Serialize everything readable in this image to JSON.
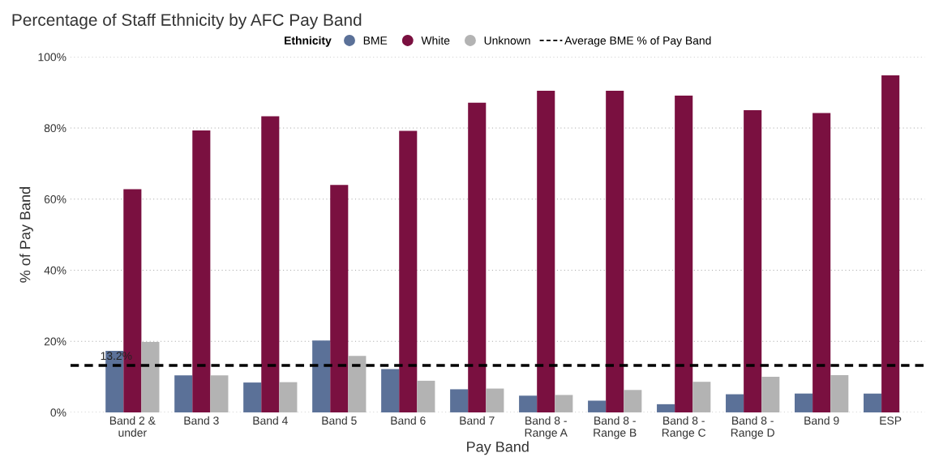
{
  "chart_data": {
    "type": "bar",
    "title": "Percentage of Staff Ethnicity by AFC Pay Band",
    "xlabel": "Pay Band",
    "ylabel": "% of Pay Band",
    "legend_title": "Ethnicity",
    "categories": [
      "Band 2 &\nunder",
      "Band 3",
      "Band 4",
      "Band 5",
      "Band 6",
      "Band 7",
      "Band 8 -\nRange A",
      "Band 8 -\nRange B",
      "Band 8 -\nRange C",
      "Band 8 -\nRange D",
      "Band 9",
      "ESP"
    ],
    "series": [
      {
        "name": "BME",
        "color": "#5b7198",
        "values": [
          17.3,
          10.4,
          8.4,
          20.2,
          12.2,
          6.5,
          4.7,
          3.3,
          2.3,
          5.1,
          5.3,
          5.3
        ]
      },
      {
        "name": "White",
        "color": "#7a1040",
        "values": [
          62.8,
          79.3,
          83.3,
          64.0,
          79.2,
          87.1,
          90.5,
          90.5,
          89.1,
          85.0,
          84.2,
          94.8
        ]
      },
      {
        "name": "Unknown",
        "color": "#b3b3b3",
        "values": [
          19.8,
          10.4,
          8.5,
          15.9,
          8.9,
          6.7,
          4.9,
          6.3,
          8.6,
          10.0,
          10.5,
          null
        ]
      }
    ],
    "ylim": [
      0,
      100
    ],
    "yticks": [
      {
        "value": 0,
        "label": "0%"
      },
      {
        "value": 20,
        "label": "20%"
      },
      {
        "value": 40,
        "label": "40%"
      },
      {
        "value": 60,
        "label": "60%"
      },
      {
        "value": 80,
        "label": "80%"
      },
      {
        "value": 100,
        "label": "100%"
      }
    ],
    "ref_lines": [
      {
        "axis": "y",
        "value": 13.2,
        "label": "Average BME % of Pay Band",
        "color": "#000000",
        "line_style": "dashed"
      }
    ],
    "annotations": [
      {
        "text": "13.2%",
        "y": 13.2
      }
    ],
    "grid": "y",
    "legend": "top"
  }
}
